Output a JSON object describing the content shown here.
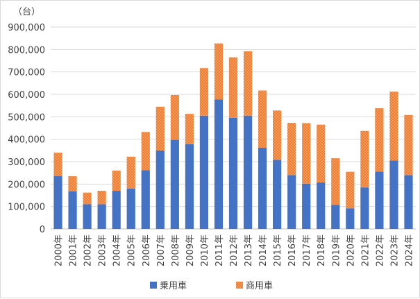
{
  "chart_data": {
    "type": "bar",
    "stacked": true,
    "unit_label": "（台）",
    "categories": [
      "2000年",
      "2001年",
      "2002年",
      "2003年",
      "2004年",
      "2005年",
      "2006年",
      "2007年",
      "2008年",
      "2009年",
      "2010年",
      "2011年",
      "2012年",
      "2013年",
      "2014年",
      "2015年",
      "2016年",
      "2017年",
      "2018年",
      "2019年",
      "2020年",
      "2021年",
      "2022年",
      "2023年",
      "2024年"
    ],
    "series": [
      {
        "name": "乗用車",
        "color": "#4472C4",
        "pattern": "solid",
        "values": [
          235000,
          168000,
          110000,
          110000,
          170000,
          180000,
          262000,
          350000,
          397000,
          378000,
          505000,
          577000,
          495000,
          505000,
          362000,
          308000,
          240000,
          202000,
          207000,
          107000,
          92000,
          185000,
          255000,
          305000,
          240000
        ]
      },
      {
        "name": "商用車",
        "color": "#ED7D31",
        "pattern": "dotted",
        "values": [
          105000,
          67000,
          52000,
          60000,
          90000,
          142000,
          170000,
          195000,
          200000,
          135000,
          212000,
          250000,
          270000,
          287000,
          255000,
          220000,
          233000,
          270000,
          258000,
          208000,
          163000,
          252000,
          283000,
          307000,
          268000
        ]
      }
    ],
    "ylim": [
      0,
      900000
    ],
    "yticks": [
      "0",
      "100,000",
      "200,000",
      "300,000",
      "400,000",
      "500,000",
      "600,000",
      "700,000",
      "800,000",
      "900,000"
    ],
    "grid": true,
    "legend_position": "bottom"
  }
}
